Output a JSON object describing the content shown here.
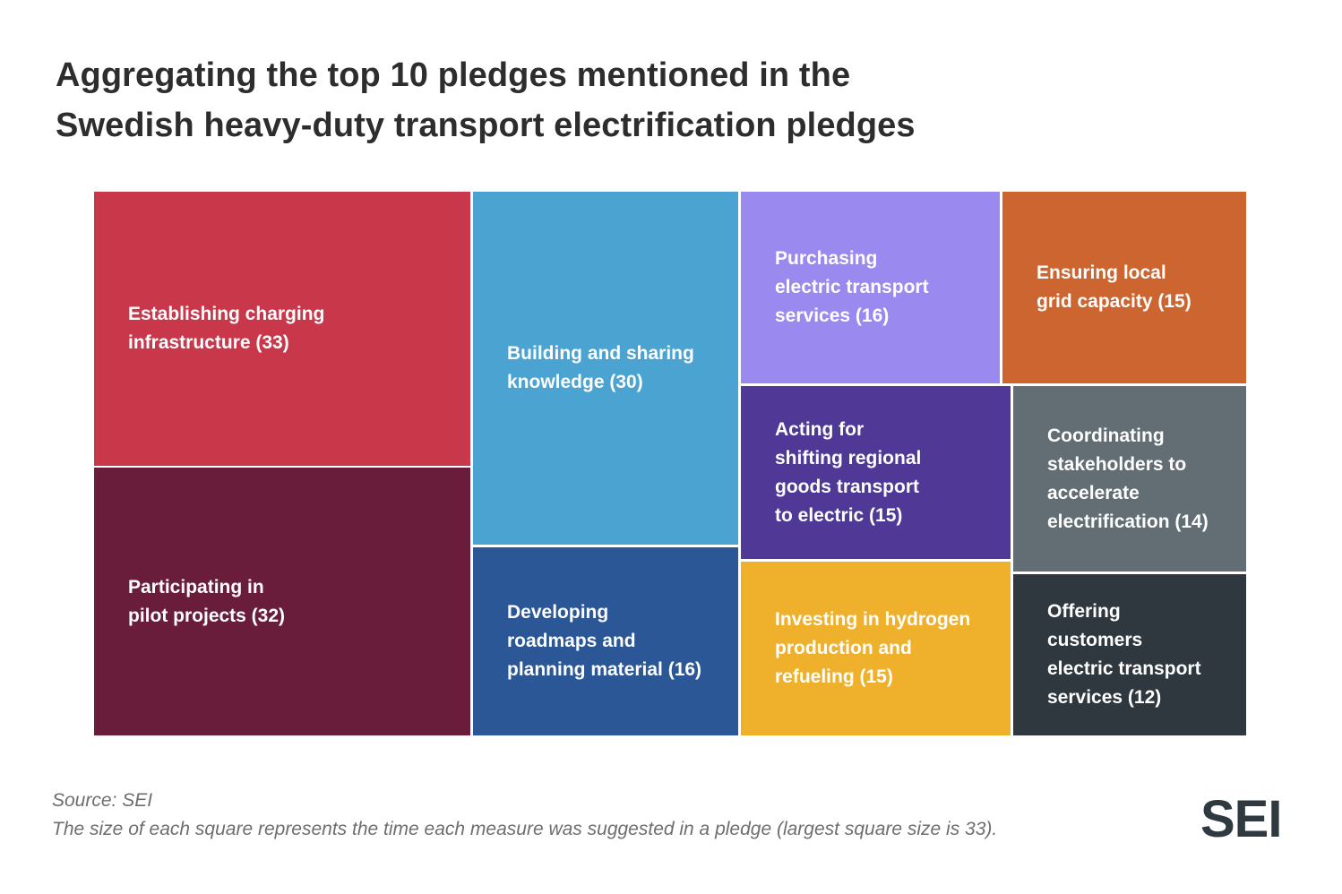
{
  "title_lines": [
    "Aggregating the top 10 pledges mentioned in the",
    "Swedish heavy-duty transport electrification pledges"
  ],
  "chart_data": {
    "type": "treemap",
    "items": [
      {
        "name": "Establishing charging infrastructure",
        "value": 33,
        "color": "#c8374a",
        "label_lines": [
          "Establishing charging",
          "infrastructure (33)"
        ]
      },
      {
        "name": "Participating in pilot projects",
        "value": 32,
        "color": "#6a1d3a",
        "label_lines": [
          "Participating in",
          "pilot projects (32)"
        ]
      },
      {
        "name": "Building and sharing knowledge",
        "value": 30,
        "color": "#4ba3d1",
        "label_lines": [
          "Building and sharing",
          "knowledge (30)"
        ]
      },
      {
        "name": "Developing roadmaps and planning material",
        "value": 16,
        "color": "#2b5797",
        "label_lines": [
          "Developing",
          "roadmaps and",
          "planning material (16)"
        ]
      },
      {
        "name": "Purchasing electric transport services",
        "value": 16,
        "color": "#9a89ee",
        "label_lines": [
          "Purchasing",
          "electric transport",
          "services (16)"
        ]
      },
      {
        "name": "Ensuring local grid capacity",
        "value": 15,
        "color": "#cc6530",
        "label_lines": [
          "Ensuring local",
          "grid capacity (15)"
        ]
      },
      {
        "name": "Acting for shifting regional goods transport to electric",
        "value": 15,
        "color": "#4f3896",
        "label_lines": [
          "Acting for",
          "shifting regional",
          "goods transport",
          "to electric (15)"
        ]
      },
      {
        "name": "Coordinating stakeholders to accelerate electrification",
        "value": 14,
        "color": "#626e74",
        "label_lines": [
          "Coordinating",
          "stakeholders to",
          "accelerate",
          "electrification (14)"
        ]
      },
      {
        "name": "Investing in hydrogen production and refueling",
        "value": 15,
        "color": "#efb02c",
        "label_lines": [
          "Investing in hydrogen",
          "production and",
          "refueling (15)"
        ]
      },
      {
        "name": "Offering customers electric transport services",
        "value": 12,
        "color": "#2f383e",
        "label_lines": [
          "Offering",
          "customers",
          "electric transport",
          "services (12)"
        ]
      }
    ]
  },
  "footer": {
    "source": "Source: SEI",
    "note": "The size of each square represents the time each measure was suggested in a pledge (largest square size is 33)."
  },
  "logo_text": "SEI"
}
